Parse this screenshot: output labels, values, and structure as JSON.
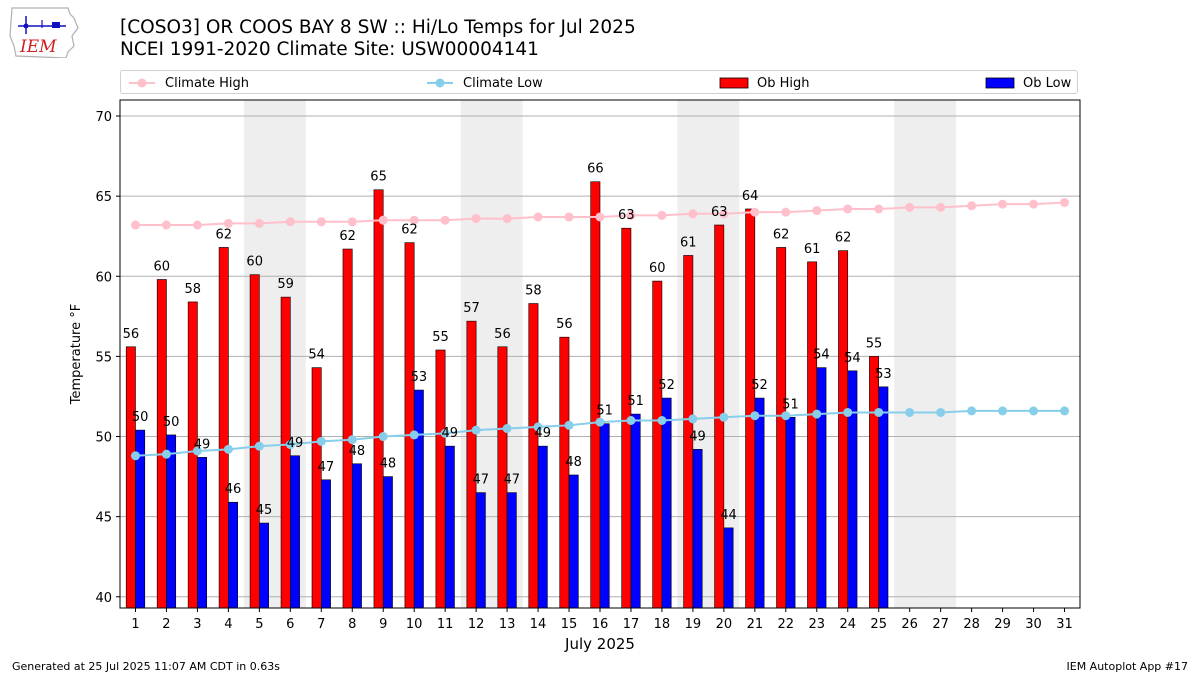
{
  "logo": {
    "text": "IEM",
    "icon": "iem-logo-icon"
  },
  "title_line1": "[COSO3] OR COOS BAY 8 SW :: Hi/Lo Temps for Jul 2025",
  "title_line2": "NCEI 1991-2020 Climate Site: USW00004141",
  "legend": {
    "climate_high": "Climate High",
    "climate_low": "Climate Low",
    "ob_high": "Ob High",
    "ob_low": "Ob Low"
  },
  "colors": {
    "ob_high": "#ff0000",
    "ob_low": "#0000ff",
    "climate_high": "#ffc0cb",
    "climate_low": "#87ceeb",
    "weekend_band": "#eeeeee",
    "grid": "#b0b0b0"
  },
  "footer": {
    "left": "Generated at 25 Jul 2025 11:07 AM CDT in 0.63s",
    "right": "IEM Autoplot App #17"
  },
  "chart_data": {
    "type": "bar",
    "xlabel": "July 2025",
    "ylabel": "Temperature °F",
    "ylim": [
      39.3,
      71
    ],
    "yticks": [
      40,
      45,
      50,
      55,
      60,
      65,
      70
    ],
    "grid": true,
    "legend_position": "top",
    "categories": [
      1,
      2,
      3,
      4,
      5,
      6,
      7,
      8,
      9,
      10,
      11,
      12,
      13,
      14,
      15,
      16,
      17,
      18,
      19,
      20,
      21,
      22,
      23,
      24,
      25,
      26,
      27,
      28,
      29,
      30,
      31
    ],
    "weekend_days": [
      5,
      6,
      12,
      13,
      19,
      20,
      26,
      27
    ],
    "series": [
      {
        "name": "Ob High",
        "kind": "bar",
        "values": [
          55.6,
          59.8,
          58.4,
          61.8,
          60.1,
          58.7,
          54.3,
          61.7,
          65.4,
          62.1,
          55.4,
          57.2,
          55.6,
          58.3,
          56.2,
          65.9,
          63.0,
          59.7,
          61.3,
          63.2,
          64.2,
          61.8,
          60.9,
          61.6,
          55.0,
          null,
          null,
          null,
          null,
          null,
          null
        ],
        "labels": [
          56,
          60,
          58,
          62,
          60,
          59,
          54,
          62,
          65,
          62,
          55,
          57,
          56,
          58,
          56,
          66,
          63,
          60,
          61,
          63,
          64,
          62,
          61,
          62,
          55,
          null,
          null,
          null,
          null,
          null,
          null
        ]
      },
      {
        "name": "Ob Low",
        "kind": "bar",
        "values": [
          50.4,
          50.1,
          48.7,
          45.9,
          44.6,
          48.8,
          47.3,
          48.3,
          47.5,
          52.9,
          49.4,
          46.5,
          46.5,
          49.4,
          47.6,
          50.8,
          51.4,
          52.4,
          49.2,
          44.3,
          52.4,
          51.2,
          54.3,
          54.1,
          53.1,
          null,
          null,
          null,
          null,
          null,
          null
        ],
        "labels": [
          50,
          50,
          49,
          46,
          45,
          49,
          47,
          48,
          48,
          53,
          49,
          47,
          47,
          49,
          48,
          51,
          51,
          52,
          49,
          44,
          52,
          51,
          54,
          54,
          53,
          null,
          null,
          null,
          null,
          null,
          null
        ]
      },
      {
        "name": "Climate High",
        "kind": "line",
        "values": [
          63.2,
          63.2,
          63.2,
          63.3,
          63.3,
          63.4,
          63.4,
          63.4,
          63.5,
          63.5,
          63.5,
          63.6,
          63.6,
          63.7,
          63.7,
          63.7,
          63.8,
          63.8,
          63.9,
          63.9,
          64.0,
          64.0,
          64.1,
          64.2,
          64.2,
          64.3,
          64.3,
          64.4,
          64.5,
          64.5,
          64.6
        ]
      },
      {
        "name": "Climate Low",
        "kind": "line",
        "values": [
          48.8,
          48.9,
          49.1,
          49.2,
          49.4,
          49.5,
          49.7,
          49.8,
          50.0,
          50.1,
          50.2,
          50.4,
          50.5,
          50.6,
          50.7,
          50.9,
          51.0,
          51.0,
          51.1,
          51.2,
          51.3,
          51.3,
          51.4,
          51.5,
          51.5,
          51.5,
          51.5,
          51.6,
          51.6,
          51.6,
          51.6
        ]
      }
    ]
  }
}
